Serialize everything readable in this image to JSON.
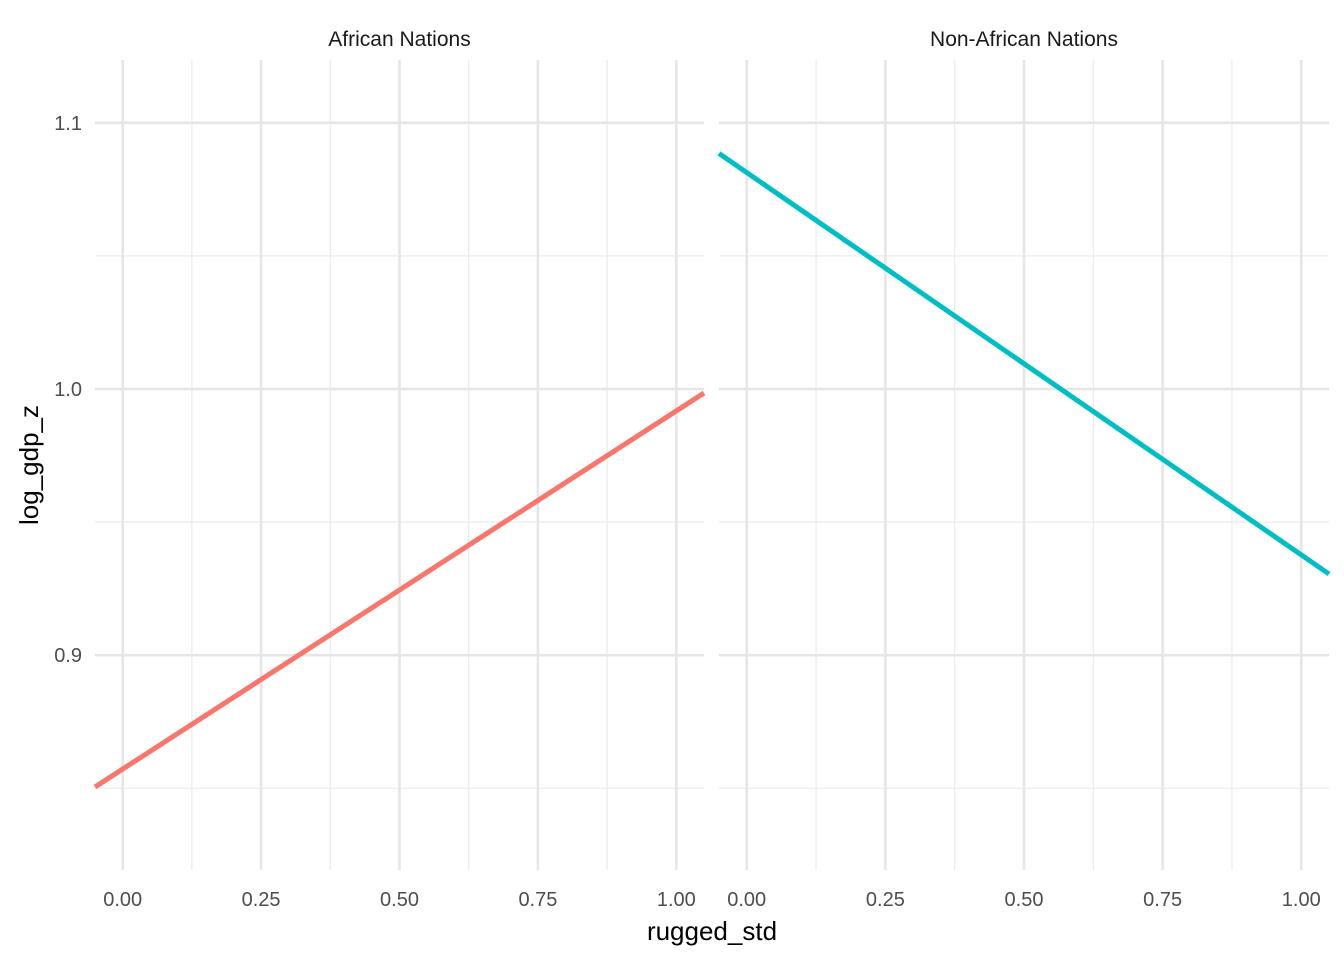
{
  "chart_data": {
    "type": "line",
    "xlabel": "rugged_std",
    "ylabel": "log_gdp_z",
    "xlim": [
      -0.05,
      1.05
    ],
    "ylim": [
      0.8193,
      1.1236
    ],
    "x_ticks": [
      "0.00",
      "0.25",
      "0.50",
      "0.75",
      "1.00"
    ],
    "x_tick_values": [
      0,
      0.25,
      0.5,
      0.75,
      1.0
    ],
    "y_ticks": [
      "0.9",
      "1.0",
      "1.1"
    ],
    "y_tick_values": [
      0.9,
      1.0,
      1.1
    ],
    "grid": true,
    "legend": "none",
    "panels": [
      {
        "title": "African Nations",
        "color": "#F8766D",
        "x": [
          -0.05,
          1.05
        ],
        "y": [
          0.8505,
          0.9985
        ]
      },
      {
        "title": "Non-African Nations",
        "color": "#00BFC4",
        "x": [
          -0.05,
          1.05
        ],
        "y": [
          1.0885,
          0.9305
        ]
      }
    ]
  }
}
